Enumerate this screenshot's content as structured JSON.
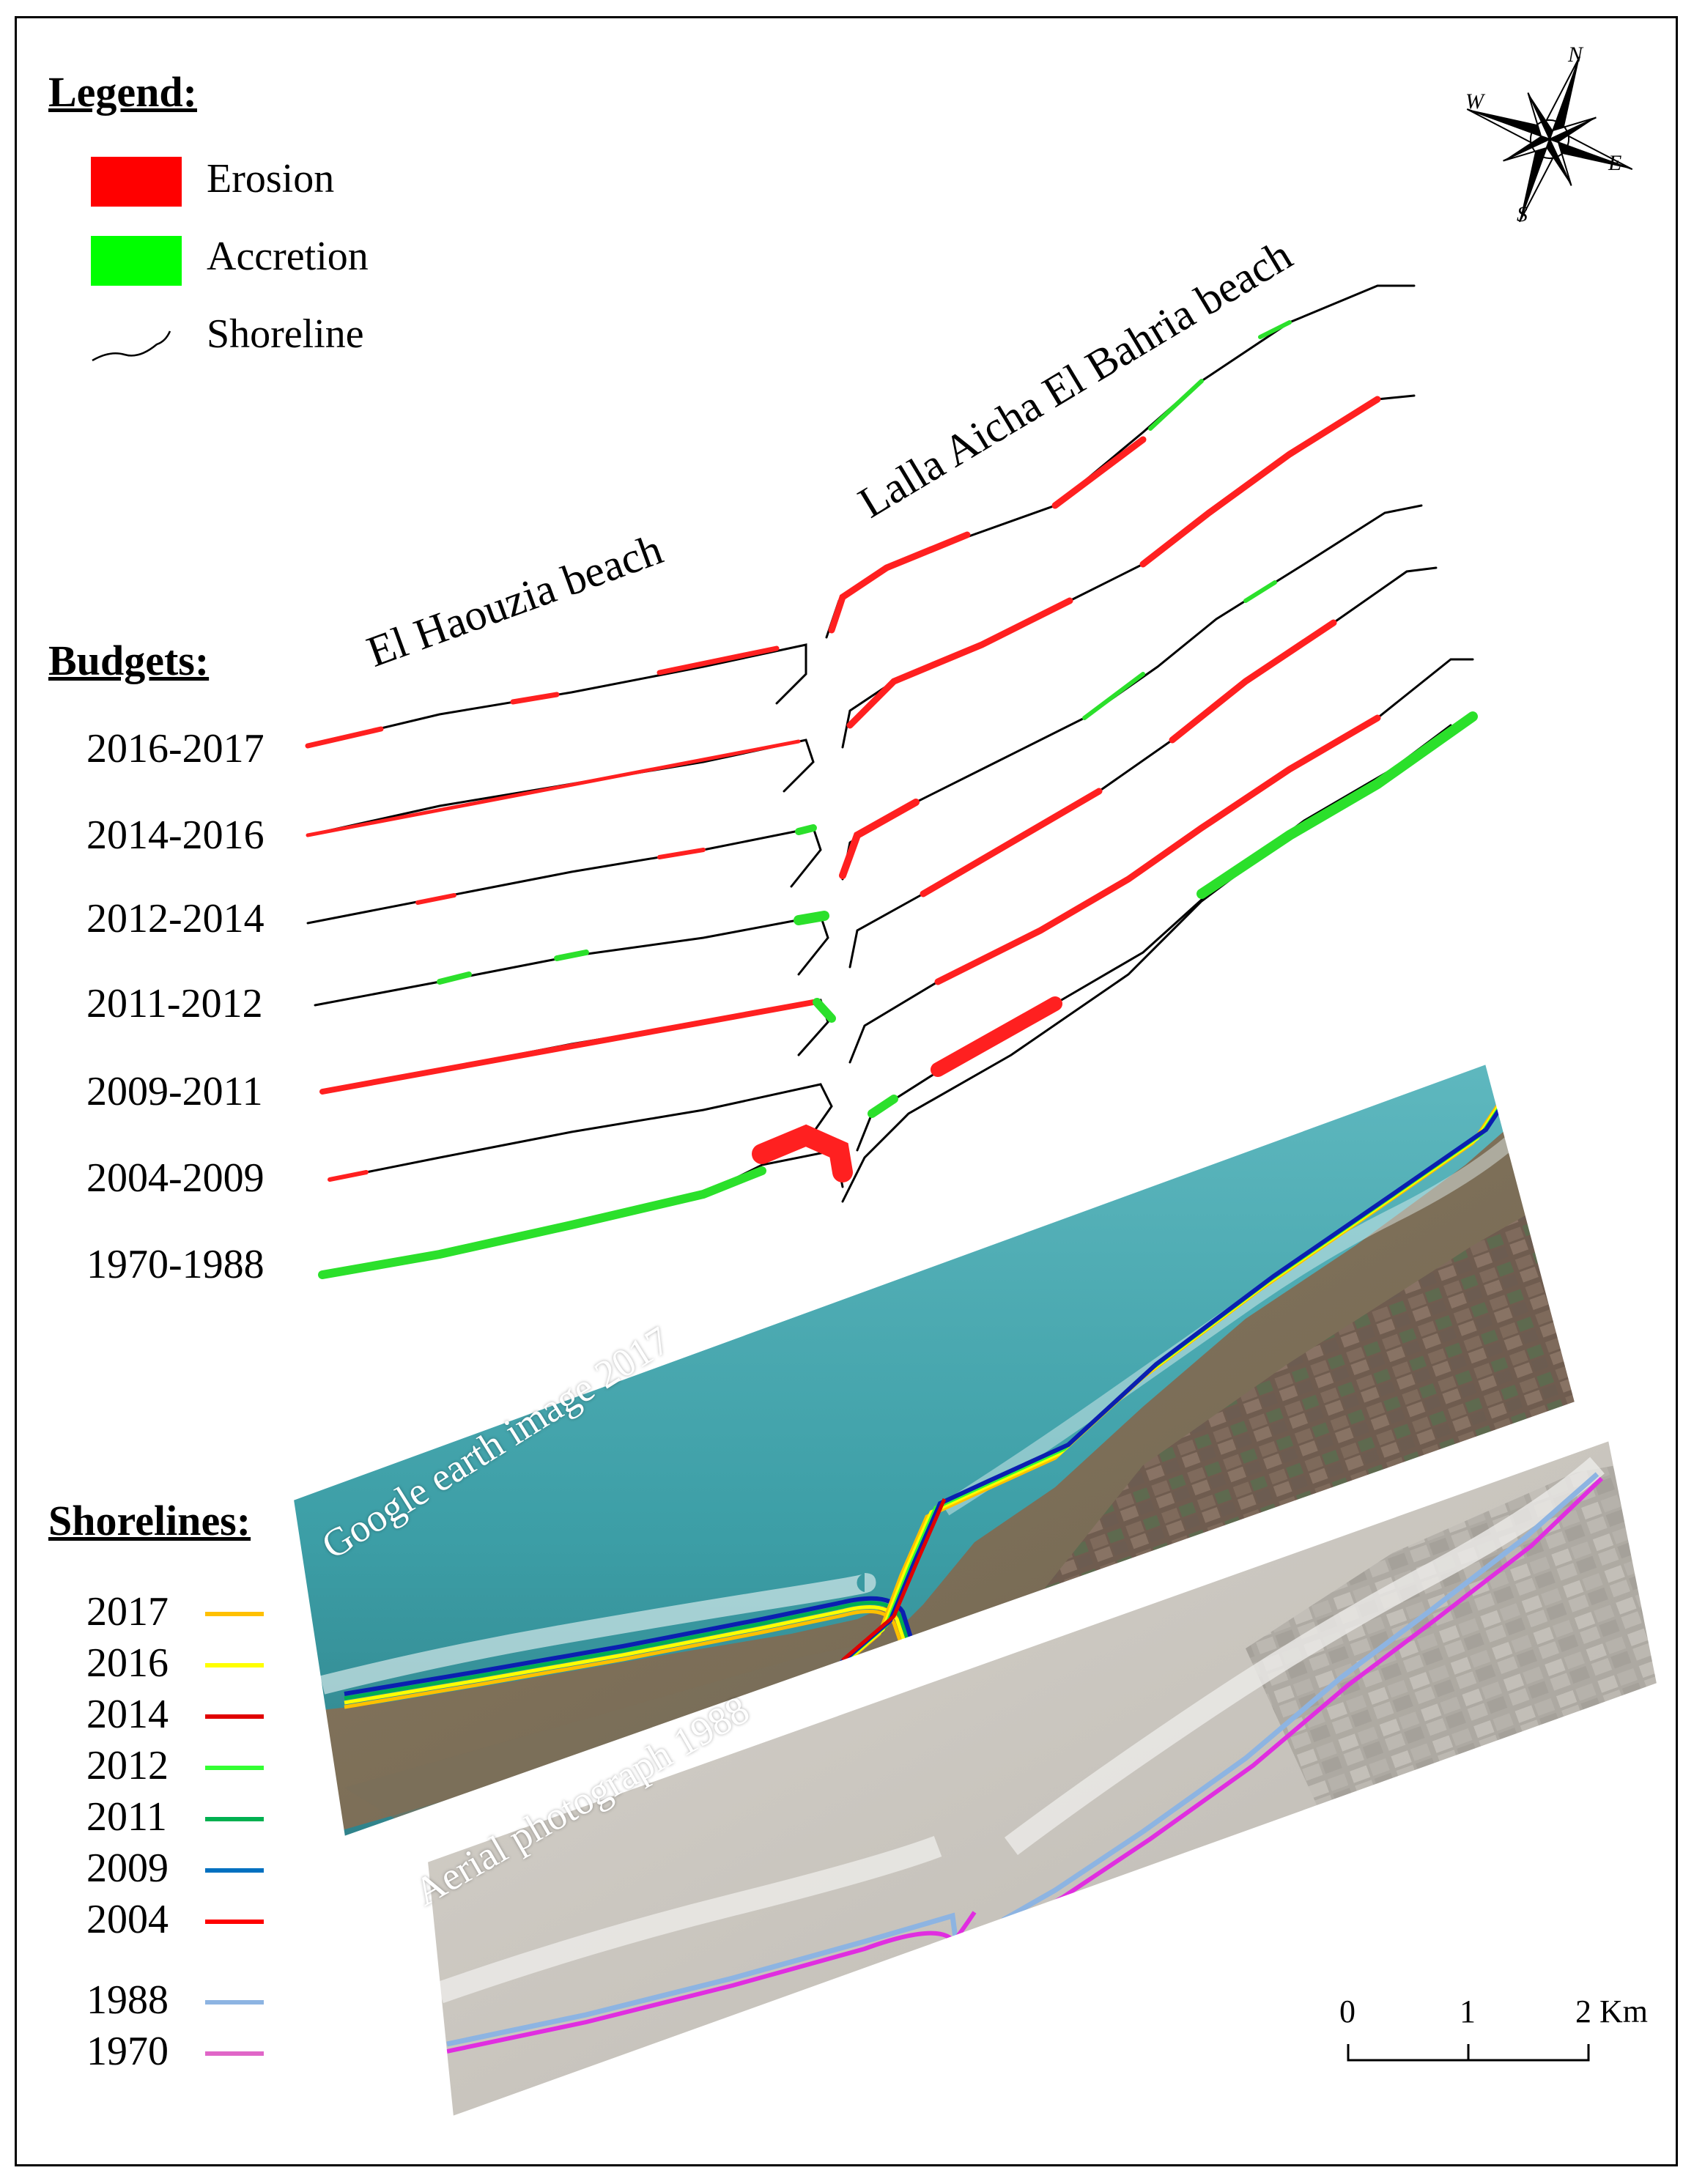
{
  "legend": {
    "heading": "Legend:",
    "items": [
      {
        "label": "Erosion",
        "color": "#ff0000",
        "icon": "erosion-swatch"
      },
      {
        "label": "Accretion",
        "color": "#00ff00",
        "icon": "accretion-swatch"
      },
      {
        "label": "Shoreline",
        "color": "#000000",
        "icon": "shoreline-line"
      }
    ]
  },
  "compass": {
    "N": "N",
    "E": "E",
    "S": "S",
    "W": "W"
  },
  "beaches": {
    "west": "El Haouzia beach",
    "east": "Lalla Aicha El Bahria beach"
  },
  "budgets": {
    "heading": "Budgets:",
    "periods": [
      {
        "label": "2016-2017",
        "west": "mixed-erosion",
        "east": "mixed"
      },
      {
        "label": "2014-2016",
        "west": "erosion",
        "east": "erosion"
      },
      {
        "label": "2012-2014",
        "west": "mixed",
        "east": "mixed"
      },
      {
        "label": "2011-2012",
        "west": "mixed-accretion",
        "east": "mixed"
      },
      {
        "label": "2009-2011",
        "west": "erosion",
        "east": "erosion"
      },
      {
        "label": "2004-2009",
        "west": "mixed",
        "east": "mixed"
      },
      {
        "label": "1970-1988",
        "west": "accretion",
        "east": "accretion"
      }
    ]
  },
  "shorelines": {
    "heading": "Shorelines:",
    "years": [
      {
        "year": "2017",
        "color": "#ffc000"
      },
      {
        "year": "2016",
        "color": "#ffff00"
      },
      {
        "year": "2014",
        "color": "#e00000"
      },
      {
        "year": "2012",
        "color": "#33ff33"
      },
      {
        "year": "2011",
        "color": "#00b050"
      },
      {
        "year": "2009",
        "color": "#0070c0"
      },
      {
        "year": "2004",
        "color": "#ff0000"
      },
      {
        "year": "1988",
        "color": "#8db4e2"
      },
      {
        "year": "1970",
        "color": "#e066c8"
      }
    ]
  },
  "images": {
    "google": "Google earth image 2017",
    "aerial": "Aerial photograph 1988"
  },
  "scalebar": {
    "ticks": [
      "0",
      "1",
      "2 Km"
    ]
  }
}
